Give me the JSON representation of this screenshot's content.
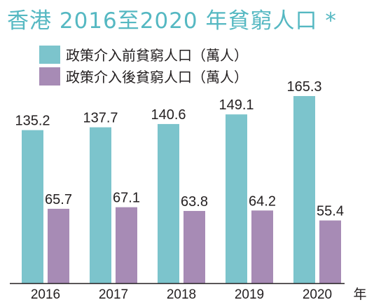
{
  "chart_data": {
    "type": "bar",
    "title": "香港 2016至2020 年貧窮人口 *",
    "xlabel": "年",
    "ylabel": "",
    "categories": [
      "2016",
      "2017",
      "2018",
      "2019",
      "2020"
    ],
    "series": [
      {
        "name": "政策介入前貧窮人口（萬人）",
        "values": [
          135.2,
          137.7,
          140.6,
          149.1,
          165.3
        ],
        "color": "#7cc4cc"
      },
      {
        "name": "政策介入後貧窮人口（萬人）",
        "values": [
          65.7,
          67.1,
          63.8,
          64.2,
          55.4
        ],
        "color": "#a78bb5"
      }
    ],
    "ylim": [
      0,
      200
    ],
    "grid": false,
    "legend_position": "top-left"
  }
}
